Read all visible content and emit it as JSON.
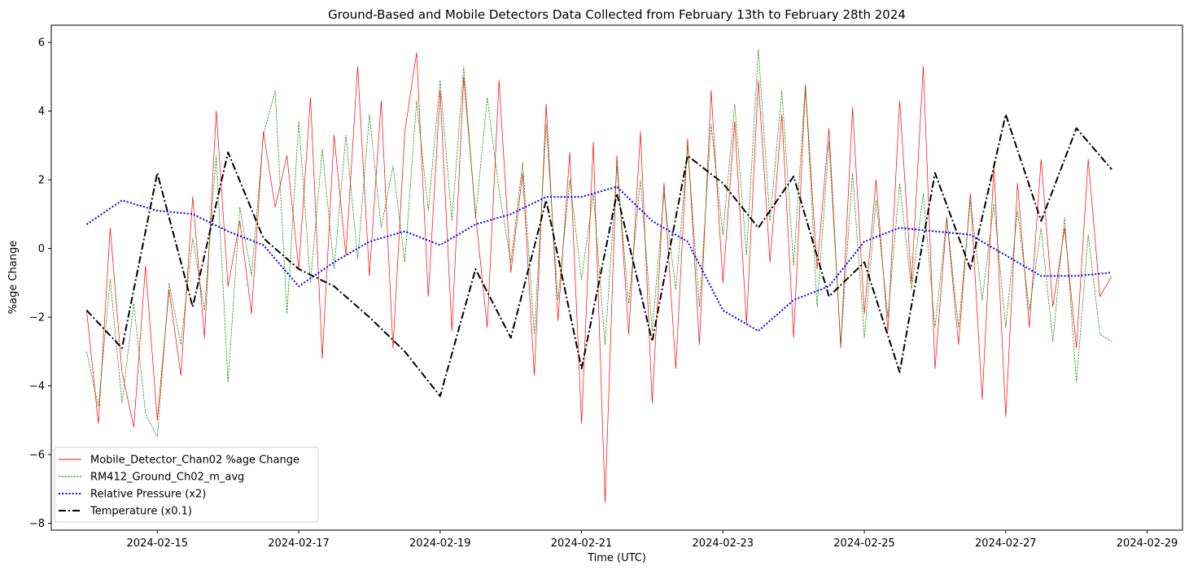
{
  "chart_data": {
    "type": "line",
    "title": "Ground-Based and Mobile Detectors Data Collected from February 13th to February 28th 2024",
    "xlabel": "Time (UTC)",
    "ylabel": "%age Change",
    "xlim": [
      "2024-02-13T12:00",
      "2024-02-29T12:00"
    ],
    "ylim": [
      -8.2,
      6.5
    ],
    "x_ticks": [
      "2024-02-15",
      "2024-02-17",
      "2024-02-19",
      "2024-02-21",
      "2024-02-23",
      "2024-02-25",
      "2024-02-27",
      "2024-02-29"
    ],
    "y_ticks": [
      -8,
      -6,
      -4,
      -2,
      0,
      2,
      4,
      6
    ],
    "grid": false,
    "legend_position": "lower-left",
    "series": [
      {
        "name": "Mobile_Detector_Chan02 %age Change",
        "color": "#ff0000",
        "style": "solid",
        "x": [
          "2024-02-14T00:00",
          "2024-02-14T04:00",
          "2024-02-14T08:00",
          "2024-02-14T12:00",
          "2024-02-14T16:00",
          "2024-02-14T20:00",
          "2024-02-15T00:00",
          "2024-02-15T04:00",
          "2024-02-15T08:00",
          "2024-02-15T12:00",
          "2024-02-15T16:00",
          "2024-02-15T20:00",
          "2024-02-16T00:00",
          "2024-02-16T04:00",
          "2024-02-16T08:00",
          "2024-02-16T12:00",
          "2024-02-16T16:00",
          "2024-02-16T20:00",
          "2024-02-17T00:00",
          "2024-02-17T04:00",
          "2024-02-17T08:00",
          "2024-02-17T12:00",
          "2024-02-17T16:00",
          "2024-02-17T20:00",
          "2024-02-18T00:00",
          "2024-02-18T04:00",
          "2024-02-18T08:00",
          "2024-02-18T12:00",
          "2024-02-18T16:00",
          "2024-02-18T20:00",
          "2024-02-19T00:00",
          "2024-02-19T04:00",
          "2024-02-19T08:00",
          "2024-02-19T12:00",
          "2024-02-19T16:00",
          "2024-02-19T20:00",
          "2024-02-20T00:00",
          "2024-02-20T04:00",
          "2024-02-20T08:00",
          "2024-02-20T12:00",
          "2024-02-20T16:00",
          "2024-02-20T20:00",
          "2024-02-21T00:00",
          "2024-02-21T04:00",
          "2024-02-21T08:00",
          "2024-02-21T12:00",
          "2024-02-21T16:00",
          "2024-02-21T20:00",
          "2024-02-22T00:00",
          "2024-02-22T04:00",
          "2024-02-22T08:00",
          "2024-02-22T12:00",
          "2024-02-22T16:00",
          "2024-02-22T20:00",
          "2024-02-23T00:00",
          "2024-02-23T04:00",
          "2024-02-23T08:00",
          "2024-02-23T12:00",
          "2024-02-23T16:00",
          "2024-02-23T20:00",
          "2024-02-24T00:00",
          "2024-02-24T04:00",
          "2024-02-24T08:00",
          "2024-02-24T12:00",
          "2024-02-24T16:00",
          "2024-02-24T20:00",
          "2024-02-25T00:00",
          "2024-02-25T04:00",
          "2024-02-25T08:00",
          "2024-02-25T12:00",
          "2024-02-25T16:00",
          "2024-02-25T20:00",
          "2024-02-26T00:00",
          "2024-02-26T04:00",
          "2024-02-26T08:00",
          "2024-02-26T12:00",
          "2024-02-26T16:00",
          "2024-02-26T20:00",
          "2024-02-27T00:00",
          "2024-02-27T04:00",
          "2024-02-27T08:00",
          "2024-02-27T12:00",
          "2024-02-27T16:00",
          "2024-02-27T20:00",
          "2024-02-28T00:00",
          "2024-02-28T04:00",
          "2024-02-28T08:00",
          "2024-02-28T12:00"
        ],
        "values": [
          -1.8,
          -5.1,
          0.6,
          -3.6,
          -5.2,
          -0.5,
          -5.0,
          -1.2,
          -3.7,
          1.5,
          -2.6,
          4.0,
          -1.1,
          0.8,
          -1.9,
          3.4,
          1.2,
          2.7,
          -0.6,
          4.4,
          -3.2,
          3.3,
          -0.2,
          5.3,
          -0.8,
          4.3,
          -2.9,
          3.4,
          5.7,
          -1.4,
          4.6,
          -2.4,
          5.0,
          1.0,
          -2.3,
          4.9,
          -0.7,
          2.2,
          -3.7,
          4.2,
          -2.1,
          2.8,
          -5.1,
          3.1,
          -7.4,
          2.7,
          -2.5,
          3.4,
          -4.5,
          1.9,
          -3.5,
          3.2,
          -2.8,
          4.6,
          -1.0,
          3.7,
          -2.2,
          4.9,
          -0.4,
          3.9,
          -2.6,
          4.7,
          -0.6,
          3.5,
          -2.9,
          4.1,
          -1.9,
          2.0,
          -2.4,
          4.3,
          -1.0,
          5.3,
          -3.5,
          0.9,
          -2.8,
          1.6,
          -4.4,
          2.4,
          -4.9,
          1.9,
          -2.3,
          2.6,
          -1.7,
          0.6,
          -2.9,
          2.6,
          -1.4,
          -0.8
        ]
      },
      {
        "name": "RM412_Ground_Ch02_m_avg",
        "color": "#008000",
        "style": "dashed",
        "x": [
          "2024-02-14T00:00",
          "2024-02-14T04:00",
          "2024-02-14T08:00",
          "2024-02-14T12:00",
          "2024-02-14T16:00",
          "2024-02-14T20:00",
          "2024-02-15T00:00",
          "2024-02-15T04:00",
          "2024-02-15T08:00",
          "2024-02-15T12:00",
          "2024-02-15T16:00",
          "2024-02-15T20:00",
          "2024-02-16T00:00",
          "2024-02-16T04:00",
          "2024-02-16T08:00",
          "2024-02-16T12:00",
          "2024-02-16T16:00",
          "2024-02-16T20:00",
          "2024-02-17T00:00",
          "2024-02-17T04:00",
          "2024-02-17T08:00",
          "2024-02-17T12:00",
          "2024-02-17T16:00",
          "2024-02-17T20:00",
          "2024-02-18T00:00",
          "2024-02-18T04:00",
          "2024-02-18T08:00",
          "2024-02-18T12:00",
          "2024-02-18T16:00",
          "2024-02-18T20:00",
          "2024-02-19T00:00",
          "2024-02-19T04:00",
          "2024-02-19T08:00",
          "2024-02-19T12:00",
          "2024-02-19T16:00",
          "2024-02-19T20:00",
          "2024-02-20T00:00",
          "2024-02-20T04:00",
          "2024-02-20T08:00",
          "2024-02-20T12:00",
          "2024-02-20T16:00",
          "2024-02-20T20:00",
          "2024-02-21T00:00",
          "2024-02-21T04:00",
          "2024-02-21T08:00",
          "2024-02-21T12:00",
          "2024-02-21T16:00",
          "2024-02-21T20:00",
          "2024-02-22T00:00",
          "2024-02-22T04:00",
          "2024-02-22T08:00",
          "2024-02-22T12:00",
          "2024-02-22T16:00",
          "2024-02-22T20:00",
          "2024-02-23T00:00",
          "2024-02-23T04:00",
          "2024-02-23T08:00",
          "2024-02-23T12:00",
          "2024-02-23T16:00",
          "2024-02-23T20:00",
          "2024-02-24T00:00",
          "2024-02-24T04:00",
          "2024-02-24T08:00",
          "2024-02-24T12:00",
          "2024-02-24T16:00",
          "2024-02-24T20:00",
          "2024-02-25T00:00",
          "2024-02-25T04:00",
          "2024-02-25T08:00",
          "2024-02-25T12:00",
          "2024-02-25T16:00",
          "2024-02-25T20:00",
          "2024-02-26T00:00",
          "2024-02-26T04:00",
          "2024-02-26T08:00",
          "2024-02-26T12:00",
          "2024-02-26T16:00",
          "2024-02-26T20:00",
          "2024-02-27T00:00",
          "2024-02-27T04:00",
          "2024-02-27T08:00",
          "2024-02-27T12:00",
          "2024-02-27T16:00",
          "2024-02-27T20:00",
          "2024-02-28T00:00",
          "2024-02-28T04:00",
          "2024-02-28T08:00",
          "2024-02-28T12:00"
        ],
        "values": [
          -3.0,
          -4.6,
          -0.9,
          -4.5,
          -1.6,
          -4.8,
          -5.5,
          -1.0,
          -2.8,
          0.3,
          -1.8,
          2.7,
          -3.9,
          1.2,
          -0.8,
          3.3,
          4.6,
          -1.9,
          3.7,
          -1.0,
          2.9,
          -0.6,
          3.3,
          -0.3,
          3.9,
          0.6,
          2.4,
          -0.4,
          4.3,
          1.1,
          4.9,
          0.8,
          5.3,
          0.9,
          4.4,
          1.7,
          -0.4,
          2.5,
          -2.5,
          3.6,
          -1.5,
          2.0,
          -0.9,
          1.6,
          -2.8,
          2.4,
          -1.6,
          2.0,
          -2.4,
          1.6,
          -1.2,
          3.0,
          -1.7,
          3.6,
          0.4,
          4.2,
          -0.2,
          5.8,
          0.8,
          4.6,
          -0.5,
          4.8,
          -1.7,
          3.1,
          -2.8,
          2.2,
          -2.6,
          1.4,
          -2.0,
          1.9,
          -1.2,
          1.6,
          -2.3,
          0.9,
          -2.3,
          1.4,
          -1.5,
          1.3,
          -2.3,
          1.1,
          -1.8,
          0.6,
          -2.7,
          0.9,
          -3.9,
          0.4,
          -2.5,
          -2.7
        ]
      },
      {
        "name": "Relative Pressure (x2)",
        "color": "#0000ff",
        "style": "dotted",
        "x": [
          "2024-02-14T00:00",
          "2024-02-14T12:00",
          "2024-02-15T00:00",
          "2024-02-15T12:00",
          "2024-02-16T00:00",
          "2024-02-16T12:00",
          "2024-02-17T00:00",
          "2024-02-17T12:00",
          "2024-02-18T00:00",
          "2024-02-18T12:00",
          "2024-02-19T00:00",
          "2024-02-19T12:00",
          "2024-02-20T00:00",
          "2024-02-20T12:00",
          "2024-02-21T00:00",
          "2024-02-21T12:00",
          "2024-02-22T00:00",
          "2024-02-22T12:00",
          "2024-02-23T00:00",
          "2024-02-23T12:00",
          "2024-02-24T00:00",
          "2024-02-24T12:00",
          "2024-02-25T00:00",
          "2024-02-25T12:00",
          "2024-02-26T00:00",
          "2024-02-26T12:00",
          "2024-02-27T00:00",
          "2024-02-27T12:00",
          "2024-02-28T00:00",
          "2024-02-28T12:00"
        ],
        "values": [
          0.7,
          1.4,
          1.1,
          1.0,
          0.5,
          0.1,
          -1.1,
          -0.4,
          0.2,
          0.5,
          0.1,
          0.7,
          1.0,
          1.5,
          1.5,
          1.8,
          0.8,
          0.2,
          -1.8,
          -2.4,
          -1.5,
          -1.1,
          0.2,
          0.6,
          0.5,
          0.4,
          -0.2,
          -0.8,
          -0.8,
          -0.7
        ]
      },
      {
        "name": "Temperature (x0.1)",
        "color": "#000000",
        "style": "dashdot",
        "x": [
          "2024-02-14T00:00",
          "2024-02-14T12:00",
          "2024-02-15T00:00",
          "2024-02-15T12:00",
          "2024-02-16T00:00",
          "2024-02-16T12:00",
          "2024-02-17T00:00",
          "2024-02-17T12:00",
          "2024-02-18T00:00",
          "2024-02-18T12:00",
          "2024-02-19T00:00",
          "2024-02-19T12:00",
          "2024-02-20T00:00",
          "2024-02-20T12:00",
          "2024-02-21T00:00",
          "2024-02-21T12:00",
          "2024-02-22T00:00",
          "2024-02-22T12:00",
          "2024-02-23T00:00",
          "2024-02-23T12:00",
          "2024-02-24T00:00",
          "2024-02-24T12:00",
          "2024-02-25T00:00",
          "2024-02-25T12:00",
          "2024-02-26T00:00",
          "2024-02-26T12:00",
          "2024-02-27T00:00",
          "2024-02-27T12:00",
          "2024-02-28T00:00",
          "2024-02-28T12:00"
        ],
        "values": [
          -1.8,
          -2.9,
          2.2,
          -1.7,
          2.8,
          0.3,
          -0.6,
          -1.1,
          -2.0,
          -3.0,
          -4.3,
          -0.6,
          -2.6,
          1.4,
          -3.5,
          1.6,
          -2.7,
          2.7,
          1.9,
          0.6,
          2.1,
          -1.4,
          -0.4,
          -3.6,
          2.2,
          -0.6,
          3.9,
          0.8,
          3.5,
          2.3
        ]
      }
    ]
  }
}
